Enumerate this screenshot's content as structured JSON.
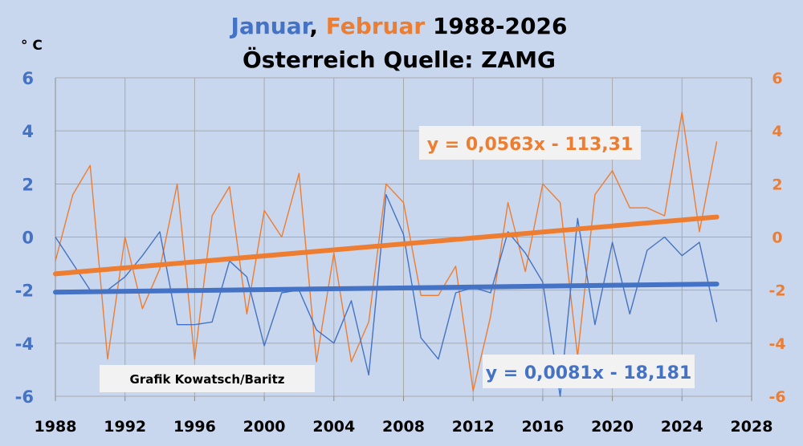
{
  "chart_data": {
    "type": "line",
    "title_parts": {
      "jan": "Januar",
      "sep": ", ",
      "feb": "Februar",
      "years": " 1988-2026"
    },
    "subtitle": "Österreich Quelle: ZAMG",
    "unit_label": "° C",
    "credit": "Grafik Kowatsch/Baritz",
    "xlim": [
      1988,
      2028
    ],
    "ylim": [
      -6,
      6
    ],
    "x_ticks": [
      1988,
      1992,
      1996,
      2000,
      2004,
      2008,
      2012,
      2016,
      2020,
      2024,
      2028
    ],
    "y_ticks": [
      -6,
      -4,
      -2,
      0,
      2,
      4,
      6
    ],
    "grid": true,
    "colors": {
      "jan": "#4472c4",
      "feb": "#ed7d31",
      "background": "#c9d7ee",
      "grid": "#a9a9a9",
      "axis_left": "#4472c4",
      "axis_right": "#ed7d31"
    },
    "x": [
      1988,
      1989,
      1990,
      1991,
      1992,
      1993,
      1994,
      1995,
      1996,
      1997,
      1998,
      1999,
      2000,
      2001,
      2002,
      2003,
      2004,
      2005,
      2006,
      2007,
      2008,
      2009,
      2010,
      2011,
      2012,
      2013,
      2014,
      2015,
      2016,
      2017,
      2018,
      2019,
      2020,
      2021,
      2022,
      2023,
      2024,
      2025,
      2026
    ],
    "series": [
      {
        "key": "jan",
        "values": [
          0.0,
          -1.0,
          -2.0,
          -2.0,
          -1.5,
          -0.7,
          0.2,
          -3.3,
          -3.3,
          -3.2,
          -0.9,
          -1.5,
          -4.1,
          -2.1,
          -2.0,
          -3.5,
          -4.0,
          -2.4,
          -5.2,
          1.6,
          0.1,
          -3.8,
          -4.6,
          -2.1,
          -1.9,
          -2.1,
          0.2,
          -0.6,
          -1.7,
          -6.0,
          0.7,
          -3.3,
          -0.2,
          -2.9,
          -0.5,
          0.0,
          -0.7,
          -0.2,
          -3.2
        ]
      },
      {
        "key": "feb",
        "values": [
          -0.9,
          1.6,
          2.7,
          -4.6,
          0.0,
          -2.7,
          -1.2,
          2.0,
          -4.6,
          0.8,
          1.9,
          -2.9,
          1.0,
          0.0,
          2.4,
          -4.7,
          -0.6,
          -4.7,
          -3.2,
          2.0,
          1.3,
          -2.2,
          -2.2,
          -1.1,
          -5.8,
          -3.0,
          1.3,
          -1.3,
          2.0,
          1.3,
          -4.5,
          1.6,
          2.5,
          1.1,
          1.1,
          0.8,
          4.7,
          0.2,
          3.6
        ]
      }
    ],
    "trendlines": [
      {
        "key": "feb",
        "slope": 0.0563,
        "intercept": -113.31,
        "x_range": [
          1988,
          2026
        ],
        "label": "y = 0,0563x - 113,31"
      },
      {
        "key": "jan",
        "slope": 0.0081,
        "intercept": -18.181,
        "x_range": [
          1988,
          2026
        ],
        "label": "y = 0,0081x - 18,181"
      }
    ]
  }
}
